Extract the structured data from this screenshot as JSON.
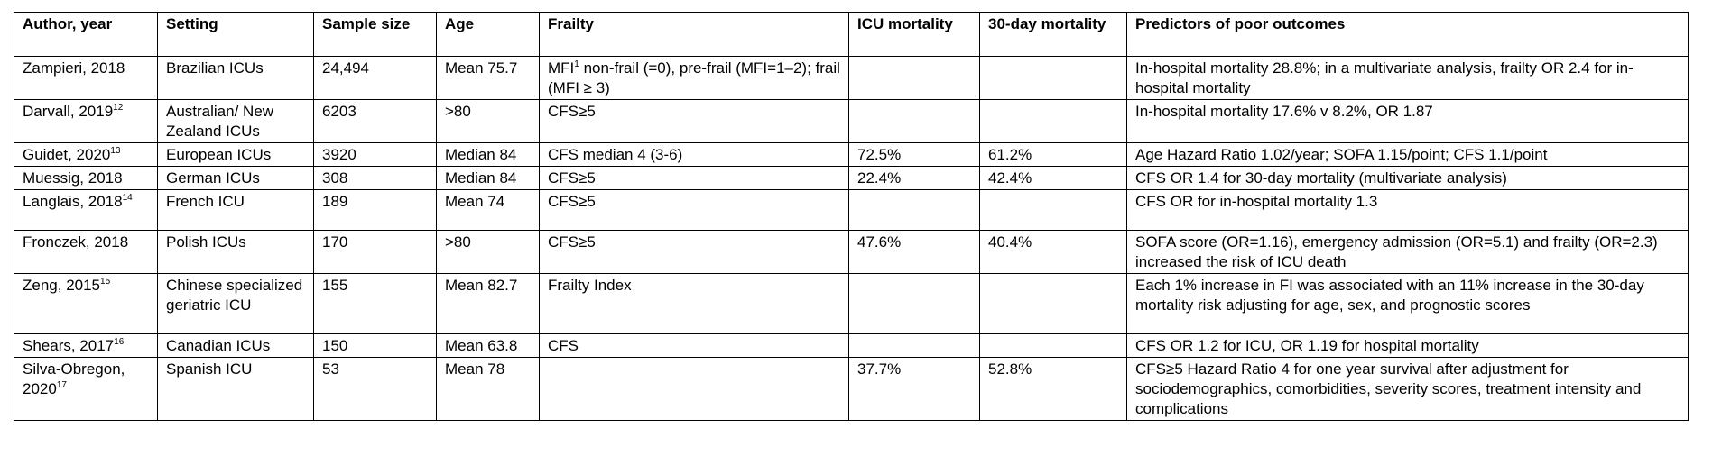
{
  "columns": [
    "Author, year",
    "Setting",
    "Sample size",
    "Age",
    "Frailty",
    "ICU mortality",
    "30-day mortality",
    "Predictors of poor outcomes"
  ],
  "rows": [
    {
      "author": "Zampieri, 2018",
      "author_ref": "",
      "setting": "Brazilian ICUs",
      "sample": "24,494",
      "age": "Mean 75.7",
      "frailty_pre": "MFI",
      "frailty_ref": "1",
      "frailty_post": " non-frail (=0), pre-frail (MFI=1–2); frail (MFI ≥ 3)",
      "icu": "",
      "day30": "",
      "predictors": "In-hospital mortality 28.8%; in a multivariate analysis, frailty OR 2.4 for in-hospital mortality"
    },
    {
      "author": "Darvall, 2019",
      "author_ref": "12",
      "setting": "Australian/ New Zealand ICUs",
      "sample": "6203",
      "age": ">80",
      "frailty_pre": "CFS≥5",
      "frailty_ref": "",
      "frailty_post": "",
      "icu": "",
      "day30": "",
      "predictors": "In-hospital mortality 17.6% v 8.2%, OR 1.87"
    },
    {
      "author": "Guidet, 2020",
      "author_ref": "13",
      "setting": "European ICUs",
      "sample": "3920",
      "age": "Median 84",
      "frailty_pre": "CFS median 4 (3-6)",
      "frailty_ref": "",
      "frailty_post": "",
      "icu": "72.5%",
      "day30": "61.2%",
      "predictors": "Age Hazard Ratio 1.02/year; SOFA 1.15/point; CFS 1.1/point"
    },
    {
      "author": "Muessig, 2018",
      "author_ref": "",
      "setting": "German ICUs",
      "sample": "308",
      "age": "Median 84",
      "frailty_pre": "CFS≥5",
      "frailty_ref": "",
      "frailty_post": "",
      "icu": "22.4%",
      "day30": "42.4%",
      "predictors": "CFS OR 1.4 for 30-day mortality (multivariate analysis)"
    },
    {
      "author": "Langlais, 2018",
      "author_ref": "14",
      "setting": "French ICU",
      "sample": "189",
      "age": "Mean 74",
      "frailty_pre": "CFS≥5",
      "frailty_ref": "",
      "frailty_post": "",
      "icu": "",
      "day30": "",
      "predictors": "CFS OR for in-hospital mortality 1.3"
    },
    {
      "author": "Fronczek, 2018",
      "author_ref": "",
      "setting": "Polish ICUs",
      "sample": "170",
      "age": ">80",
      "frailty_pre": "CFS≥5",
      "frailty_ref": "",
      "frailty_post": "",
      "icu": "47.6%",
      "day30": "40.4%",
      "predictors": "SOFA score (OR=1.16), emergency admission (OR=5.1) and frailty (OR=2.3) increased the risk of ICU death"
    },
    {
      "author": "Zeng, 2015",
      "author_ref": "15",
      "setting": "Chinese specialized geriatric ICU",
      "sample": "155",
      "age": "Mean 82.7",
      "frailty_pre": "Frailty Index",
      "frailty_ref": "",
      "frailty_post": "",
      "icu": "",
      "day30": "",
      "predictors": "Each 1% increase in FI was associated with an 11% increase in the 30-day mortality risk adjusting for age, sex, and prognostic scores"
    },
    {
      "author": "Shears, 2017",
      "author_ref": "16",
      "setting": "Canadian ICUs",
      "sample": "150",
      "age": "Mean 63.8",
      "frailty_pre": "CFS",
      "frailty_ref": "",
      "frailty_post": "",
      "icu": "",
      "day30": "",
      "predictors": "CFS OR 1.2 for ICU, OR 1.19 for hospital mortality"
    },
    {
      "author": "Silva-Obregon, 2020",
      "author_ref": "17",
      "setting": "Spanish ICU",
      "sample": "53",
      "age": "Mean 78",
      "frailty_pre": "",
      "frailty_ref": "",
      "frailty_post": "",
      "icu": "37.7%",
      "day30": "52.8%",
      "predictors": "CFS≥5 Hazard Ratio 4 for one year survival after adjustment for sociodemographics, comorbidities, severity scores, treatment intensity and complications"
    }
  ]
}
